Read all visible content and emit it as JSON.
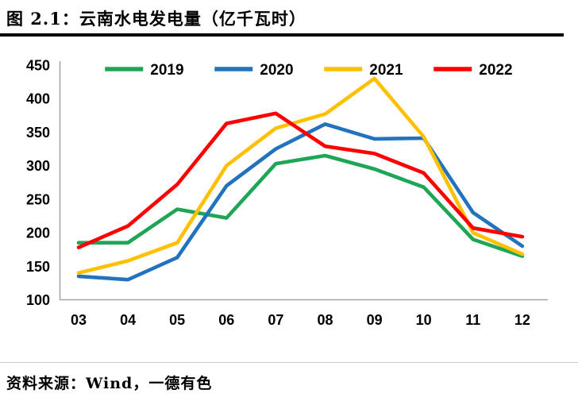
{
  "header": {
    "title": "图 2.1：云南水电发电量（亿千瓦时）"
  },
  "footer": {
    "source": "资料来源：Wind，一德有色"
  },
  "chart_data": {
    "type": "line",
    "title": "云南水电发电量（亿千瓦时）",
    "xlabel": "",
    "ylabel": "",
    "categories": [
      "03",
      "04",
      "05",
      "06",
      "07",
      "08",
      "09",
      "10",
      "11",
      "12"
    ],
    "series": [
      {
        "name": "2019",
        "color": "#1ea556",
        "values": [
          185,
          185,
          235,
          222,
          303,
          315,
          295,
          268,
          190,
          165
        ]
      },
      {
        "name": "2020",
        "color": "#2073bc",
        "values": [
          135,
          130,
          163,
          270,
          325,
          362,
          340,
          341,
          230,
          180
        ]
      },
      {
        "name": "2021",
        "color": "#ffc000",
        "values": [
          140,
          158,
          185,
          300,
          356,
          377,
          430,
          343,
          200,
          168
        ]
      },
      {
        "name": "2022",
        "color": "#ff0000",
        "values": [
          178,
          210,
          272,
          363,
          378,
          329,
          318,
          289,
          207,
          194
        ]
      }
    ],
    "ylim": [
      100,
      450
    ],
    "yticks": [
      100,
      150,
      200,
      250,
      300,
      350,
      400,
      450
    ],
    "grid": false,
    "legend_position": "top",
    "axis_color": "#a6a6a6",
    "tick_label_color": "#000000"
  }
}
